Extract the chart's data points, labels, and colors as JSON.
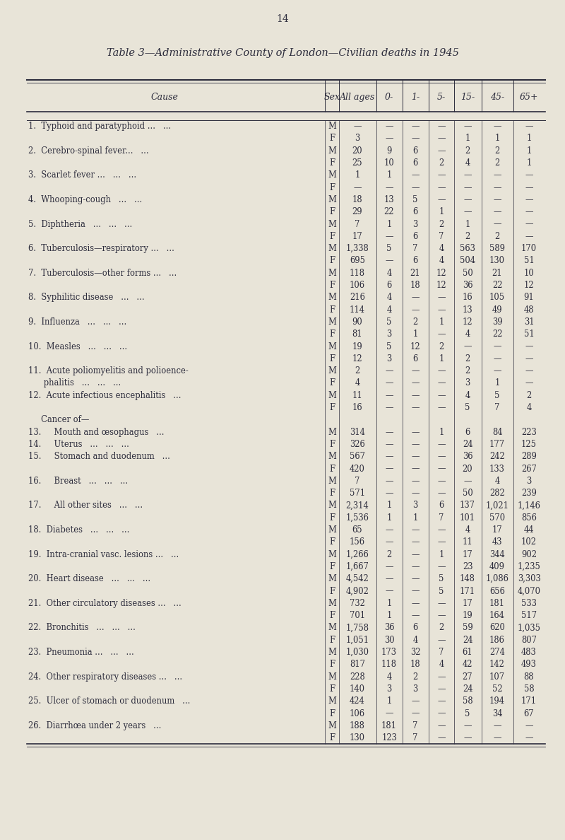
{
  "page_number": "14",
  "title": "Table 3—Administrative County of London—Civilian deaths in 1945",
  "background_color": "#e8e4d8",
  "text_color": "#2c2c3c",
  "rows": [
    {
      "cause": "1.  Typhoid and paratyphoid ...   ...",
      "sex": "M",
      "all": "—",
      "c0": "—",
      "c1": "—",
      "c5": "—",
      "c15": "—",
      "c45": "—",
      "c65": "—",
      "first": true
    },
    {
      "cause": "",
      "sex": "F",
      "all": "3",
      "c0": "—",
      "c1": "—",
      "c5": "—",
      "c15": "1",
      "c45": "1",
      "c65": "1",
      "first": false
    },
    {
      "cause": "2.  Cerebro-spinal fever...   ...",
      "sex": "M",
      "all": "20",
      "c0": "9",
      "c1": "6",
      "c5": "—",
      "c15": "2",
      "c45": "2",
      "c65": "1",
      "first": true
    },
    {
      "cause": "",
      "sex": "F",
      "all": "25",
      "c0": "10",
      "c1": "6",
      "c5": "2",
      "c15": "4",
      "c45": "2",
      "c65": "1",
      "first": false
    },
    {
      "cause": "3.  Scarlet fever ...   ...   ...",
      "sex": "M",
      "all": "1",
      "c0": "1",
      "c1": "—",
      "c5": "—",
      "c15": "—",
      "c45": "—",
      "c65": "—",
      "first": true
    },
    {
      "cause": "",
      "sex": "F",
      "all": "—",
      "c0": "—",
      "c1": "—",
      "c5": "—",
      "c15": "—",
      "c45": "—",
      "c65": "—",
      "first": false
    },
    {
      "cause": "4.  Whooping-cough   ...   ...",
      "sex": "M",
      "all": "18",
      "c0": "13",
      "c1": "5",
      "c5": "—",
      "c15": "—",
      "c45": "—",
      "c65": "—",
      "first": true
    },
    {
      "cause": "",
      "sex": "F",
      "all": "29",
      "c0": "22",
      "c1": "6",
      "c5": "1",
      "c15": "—",
      "c45": "—",
      "c65": "—",
      "first": false
    },
    {
      "cause": "5.  Diphtheria   ...   ...   ...",
      "sex": "M",
      "all": "7",
      "c0": "1",
      "c1": "3",
      "c5": "2",
      "c15": "1",
      "c45": "—",
      "c65": "—",
      "first": true
    },
    {
      "cause": "",
      "sex": "F",
      "all": "17",
      "c0": "—",
      "c1": "6",
      "c5": "7",
      "c15": "2",
      "c45": "2",
      "c65": "—",
      "first": false
    },
    {
      "cause": "6.  Tuberculosis—respiratory ...   ...",
      "sex": "M",
      "all": "1,338",
      "c0": "5",
      "c1": "7",
      "c5": "4",
      "c15": "563",
      "c45": "589",
      "c65": "170",
      "first": true
    },
    {
      "cause": "",
      "sex": "F",
      "all": "695",
      "c0": "—",
      "c1": "6",
      "c5": "4",
      "c15": "504",
      "c45": "130",
      "c65": "51",
      "first": false
    },
    {
      "cause": "7.  Tuberculosis—other forms ...   ...",
      "sex": "M",
      "all": "118",
      "c0": "4",
      "c1": "21",
      "c5": "12",
      "c15": "50",
      "c45": "21",
      "c65": "10",
      "first": true
    },
    {
      "cause": "",
      "sex": "F",
      "all": "106",
      "c0": "6",
      "c1": "18",
      "c5": "12",
      "c15": "36",
      "c45": "22",
      "c65": "12",
      "first": false
    },
    {
      "cause": "8.  Syphilitic disease   ...   ...",
      "sex": "M",
      "all": "216",
      "c0": "4",
      "c1": "—",
      "c5": "—",
      "c15": "16",
      "c45": "105",
      "c65": "91",
      "first": true
    },
    {
      "cause": "",
      "sex": "F",
      "all": "114",
      "c0": "4",
      "c1": "—",
      "c5": "—",
      "c15": "13",
      "c45": "49",
      "c65": "48",
      "first": false
    },
    {
      "cause": "9.  Influenza   ...   ...   ...",
      "sex": "M",
      "all": "90",
      "c0": "5",
      "c1": "2",
      "c5": "1",
      "c15": "12",
      "c45": "39",
      "c65": "31",
      "first": true
    },
    {
      "cause": "",
      "sex": "F",
      "all": "81",
      "c0": "3",
      "c1": "1",
      "c5": "—",
      "c15": "4",
      "c45": "22",
      "c65": "51",
      "first": false
    },
    {
      "cause": "10.  Measles   ...   ...   ...",
      "sex": "M",
      "all": "19",
      "c0": "5",
      "c1": "12",
      "c5": "2",
      "c15": "—",
      "c45": "—",
      "c65": "—",
      "first": true
    },
    {
      "cause": "",
      "sex": "F",
      "all": "12",
      "c0": "3",
      "c1": "6",
      "c5": "1",
      "c15": "2",
      "c45": "—",
      "c65": "—",
      "first": false
    },
    {
      "cause": "11.  Acute poliomyelitis and polioence-",
      "sex": "M",
      "all": "2",
      "c0": "—",
      "c1": "—",
      "c5": "—",
      "c15": "2",
      "c45": "—",
      "c65": "—",
      "first": true
    },
    {
      "cause": "      phalitis   ...   ...   ...",
      "sex": "F",
      "all": "4",
      "c0": "—",
      "c1": "—",
      "c5": "—",
      "c15": "3",
      "c45": "1",
      "c65": "—",
      "first": false
    },
    {
      "cause": "12.  Acute infectious encephalitis   ...",
      "sex": "M",
      "all": "11",
      "c0": "—",
      "c1": "—",
      "c5": "—",
      "c15": "4",
      "c45": "5",
      "c65": "2",
      "first": true
    },
    {
      "cause": "",
      "sex": "F",
      "all": "16",
      "c0": "—",
      "c1": "—",
      "c5": "—",
      "c15": "5",
      "c45": "7",
      "c65": "4",
      "first": false
    },
    {
      "cause": "     Cancer of—",
      "sex": "",
      "all": "",
      "c0": "",
      "c1": "",
      "c5": "",
      "c15": "",
      "c45": "",
      "c65": "",
      "first": true,
      "label_only": true
    },
    {
      "cause": "13.     Mouth and œsophagus   ...",
      "sex": "M",
      "all": "314",
      "c0": "—",
      "c1": "—",
      "c5": "1",
      "c15": "6",
      "c45": "84",
      "c65": "223",
      "first": true
    },
    {
      "cause": "14.     Uterus   ...   ...   ...",
      "sex": "F",
      "all": "326",
      "c0": "—",
      "c1": "—",
      "c5": "—",
      "c15": "24",
      "c45": "177",
      "c65": "125",
      "first": true
    },
    {
      "cause": "15.     Stomach and duodenum   ...",
      "sex": "M",
      "all": "567",
      "c0": "—",
      "c1": "—",
      "c5": "—",
      "c15": "36",
      "c45": "242",
      "c65": "289",
      "first": true
    },
    {
      "cause": "",
      "sex": "F",
      "all": "420",
      "c0": "—",
      "c1": "—",
      "c5": "—",
      "c15": "20",
      "c45": "133",
      "c65": "267",
      "first": false
    },
    {
      "cause": "16.     Breast   ...   ...   ...",
      "sex": "M",
      "all": "7",
      "c0": "—",
      "c1": "—",
      "c5": "—",
      "c15": "—",
      "c45": "4",
      "c65": "3",
      "first": true
    },
    {
      "cause": "",
      "sex": "F",
      "all": "571",
      "c0": "—",
      "c1": "—",
      "c5": "—",
      "c15": "50",
      "c45": "282",
      "c65": "239",
      "first": false
    },
    {
      "cause": "17.     All other sites   ...   ...",
      "sex": "M",
      "all": "2,314",
      "c0": "1",
      "c1": "3",
      "c5": "6",
      "c15": "137",
      "c45": "1,021",
      "c65": "1,146",
      "first": true
    },
    {
      "cause": "",
      "sex": "F",
      "all": "1,536",
      "c0": "1",
      "c1": "1",
      "c5": "7",
      "c15": "101",
      "c45": "570",
      "c65": "856",
      "first": false
    },
    {
      "cause": "18.  Diabetes   ...   ...   ...",
      "sex": "M",
      "all": "65",
      "c0": "—",
      "c1": "—",
      "c5": "—",
      "c15": "4",
      "c45": "17",
      "c65": "44",
      "first": true
    },
    {
      "cause": "",
      "sex": "F",
      "all": "156",
      "c0": "—",
      "c1": "—",
      "c5": "—",
      "c15": "11",
      "c45": "43",
      "c65": "102",
      "first": false
    },
    {
      "cause": "19.  Intra-cranial vasc. lesions ...   ...",
      "sex": "M",
      "all": "1,266",
      "c0": "2",
      "c1": "—",
      "c5": "1",
      "c15": "17",
      "c45": "344",
      "c65": "902",
      "first": true
    },
    {
      "cause": "",
      "sex": "F",
      "all": "1,667",
      "c0": "—",
      "c1": "—",
      "c5": "—",
      "c15": "23",
      "c45": "409",
      "c65": "1,235",
      "first": false
    },
    {
      "cause": "20.  Heart disease   ...   ...   ...",
      "sex": "M",
      "all": "4,542",
      "c0": "—",
      "c1": "—",
      "c5": "5",
      "c15": "148",
      "c45": "1,086",
      "c65": "3,303",
      "first": true
    },
    {
      "cause": "",
      "sex": "F",
      "all": "4,902",
      "c0": "—",
      "c1": "—",
      "c5": "5",
      "c15": "171",
      "c45": "656",
      "c65": "4,070",
      "first": false
    },
    {
      "cause": "21.  Other circulatory diseases ...   ...",
      "sex": "M",
      "all": "732",
      "c0": "1",
      "c1": "—",
      "c5": "—",
      "c15": "17",
      "c45": "181",
      "c65": "533",
      "first": true
    },
    {
      "cause": "",
      "sex": "F",
      "all": "701",
      "c0": "1",
      "c1": "—",
      "c5": "—",
      "c15": "19",
      "c45": "164",
      "c65": "517",
      "first": false
    },
    {
      "cause": "22.  Bronchitis   ...   ...   ...",
      "sex": "M",
      "all": "1,758",
      "c0": "36",
      "c1": "6",
      "c5": "2",
      "c15": "59",
      "c45": "620",
      "c65": "1,035",
      "first": true
    },
    {
      "cause": "",
      "sex": "F",
      "all": "1,051",
      "c0": "30",
      "c1": "4",
      "c5": "—",
      "c15": "24",
      "c45": "186",
      "c65": "807",
      "first": false
    },
    {
      "cause": "23.  Pneumonia ...   ...   ...",
      "sex": "M",
      "all": "1,030",
      "c0": "173",
      "c1": "32",
      "c5": "7",
      "c15": "61",
      "c45": "274",
      "c65": "483",
      "first": true
    },
    {
      "cause": "",
      "sex": "F",
      "all": "817",
      "c0": "118",
      "c1": "18",
      "c5": "4",
      "c15": "42",
      "c45": "142",
      "c65": "493",
      "first": false
    },
    {
      "cause": "24.  Other respiratory diseases ...   ...",
      "sex": "M",
      "all": "228",
      "c0": "4",
      "c1": "2",
      "c5": "—",
      "c15": "27",
      "c45": "107",
      "c65": "88",
      "first": true
    },
    {
      "cause": "",
      "sex": "F",
      "all": "140",
      "c0": "3",
      "c1": "3",
      "c5": "—",
      "c15": "24",
      "c45": "52",
      "c65": "58",
      "first": false
    },
    {
      "cause": "25.  Ulcer of stomach or duodenum   ...",
      "sex": "M",
      "all": "424",
      "c0": "1",
      "c1": "—",
      "c5": "—",
      "c15": "58",
      "c45": "194",
      "c65": "171",
      "first": true
    },
    {
      "cause": "",
      "sex": "F",
      "all": "106",
      "c0": "—",
      "c1": "—",
      "c5": "—",
      "c15": "5",
      "c45": "34",
      "c65": "67",
      "first": false
    },
    {
      "cause": "26.  Diarrhœa under 2 years   ...",
      "sex": "M",
      "all": "188",
      "c0": "181",
      "c1": "7",
      "c5": "—",
      "c15": "—",
      "c45": "—",
      "c65": "—",
      "first": true
    },
    {
      "cause": "",
      "sex": "F",
      "all": "130",
      "c0": "123",
      "c1": "7",
      "c5": "—",
      "c15": "—",
      "c45": "—",
      "c65": "—",
      "first": false
    }
  ]
}
